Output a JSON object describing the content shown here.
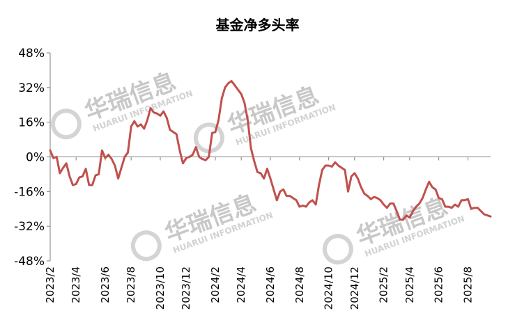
{
  "chart_data": {
    "type": "line",
    "title": "基金净多头率",
    "xlabel": "",
    "ylabel": "",
    "ylim": [
      -48,
      48
    ],
    "y_unit": "%",
    "y_ticks": [
      "48%",
      "32%",
      "16%",
      "0%",
      "-16%",
      "-32%",
      "-48%"
    ],
    "y_tick_values": [
      48,
      32,
      16,
      0,
      -16,
      -32,
      -48
    ],
    "x_ticks": [
      "2023/2",
      "2023/4",
      "2023/6",
      "2023/8",
      "2023/10",
      "2023/12",
      "2024/2",
      "2024/4",
      "2024/6",
      "2024/8",
      "2024/10",
      "2024/12",
      "2025/2",
      "2025/4",
      "2025/6",
      "2025/8"
    ],
    "x_tick_index": [
      0,
      8,
      17,
      25,
      34,
      42,
      51,
      59,
      68,
      77,
      86,
      94,
      103,
      111,
      120,
      129
    ],
    "grid": false,
    "legend": "none",
    "line_color": "#c0504d",
    "values": [
      3,
      -0.5,
      0,
      -7.5,
      -5,
      -3,
      -9,
      -13,
      -12.5,
      -9.5,
      -9,
      -5.5,
      -13,
      -13,
      -8.5,
      -8,
      3,
      -0.5,
      1,
      -1,
      -4,
      -10,
      -5,
      0,
      2,
      14,
      16.5,
      14,
      15,
      13,
      17,
      22.5,
      20.5,
      20,
      19,
      21,
      18,
      12.5,
      11.5,
      10.5,
      3,
      -3,
      -0.5,
      0,
      1,
      4.5,
      0,
      -1,
      -1.5,
      0,
      11,
      11.5,
      17,
      27,
      32,
      34,
      35,
      33,
      31,
      29,
      25,
      17,
      4,
      -2,
      -7,
      -7.5,
      -10,
      -5.5,
      -10,
      -15,
      -20,
      -16,
      -15,
      -18,
      -18,
      -19,
      -20,
      -23,
      -22.5,
      -23,
      -21,
      -20,
      -22,
      -13,
      -6,
      -4,
      -4,
      -4.5,
      -2.5,
      -4,
      -5,
      -6,
      -16,
      -9,
      -7.5,
      -10,
      -14,
      -17,
      -18,
      -19.5,
      -18.5,
      -19,
      -20,
      -22,
      -23.5,
      -21.5,
      -21.5,
      -25,
      -29,
      -29,
      -27,
      -28,
      -25,
      -23,
      -21.5,
      -19,
      -15,
      -11.5,
      -14,
      -15,
      -19,
      -19.5,
      -23,
      -23,
      -23.5,
      -22,
      -23,
      -20,
      -20,
      -19.5,
      -24,
      -23.5,
      -23.5,
      -25,
      -26.5,
      -27,
      -27.5
    ]
  },
  "watermark": {
    "brand": "华瑞信息",
    "sub": "HUARUI INFORMATION"
  }
}
